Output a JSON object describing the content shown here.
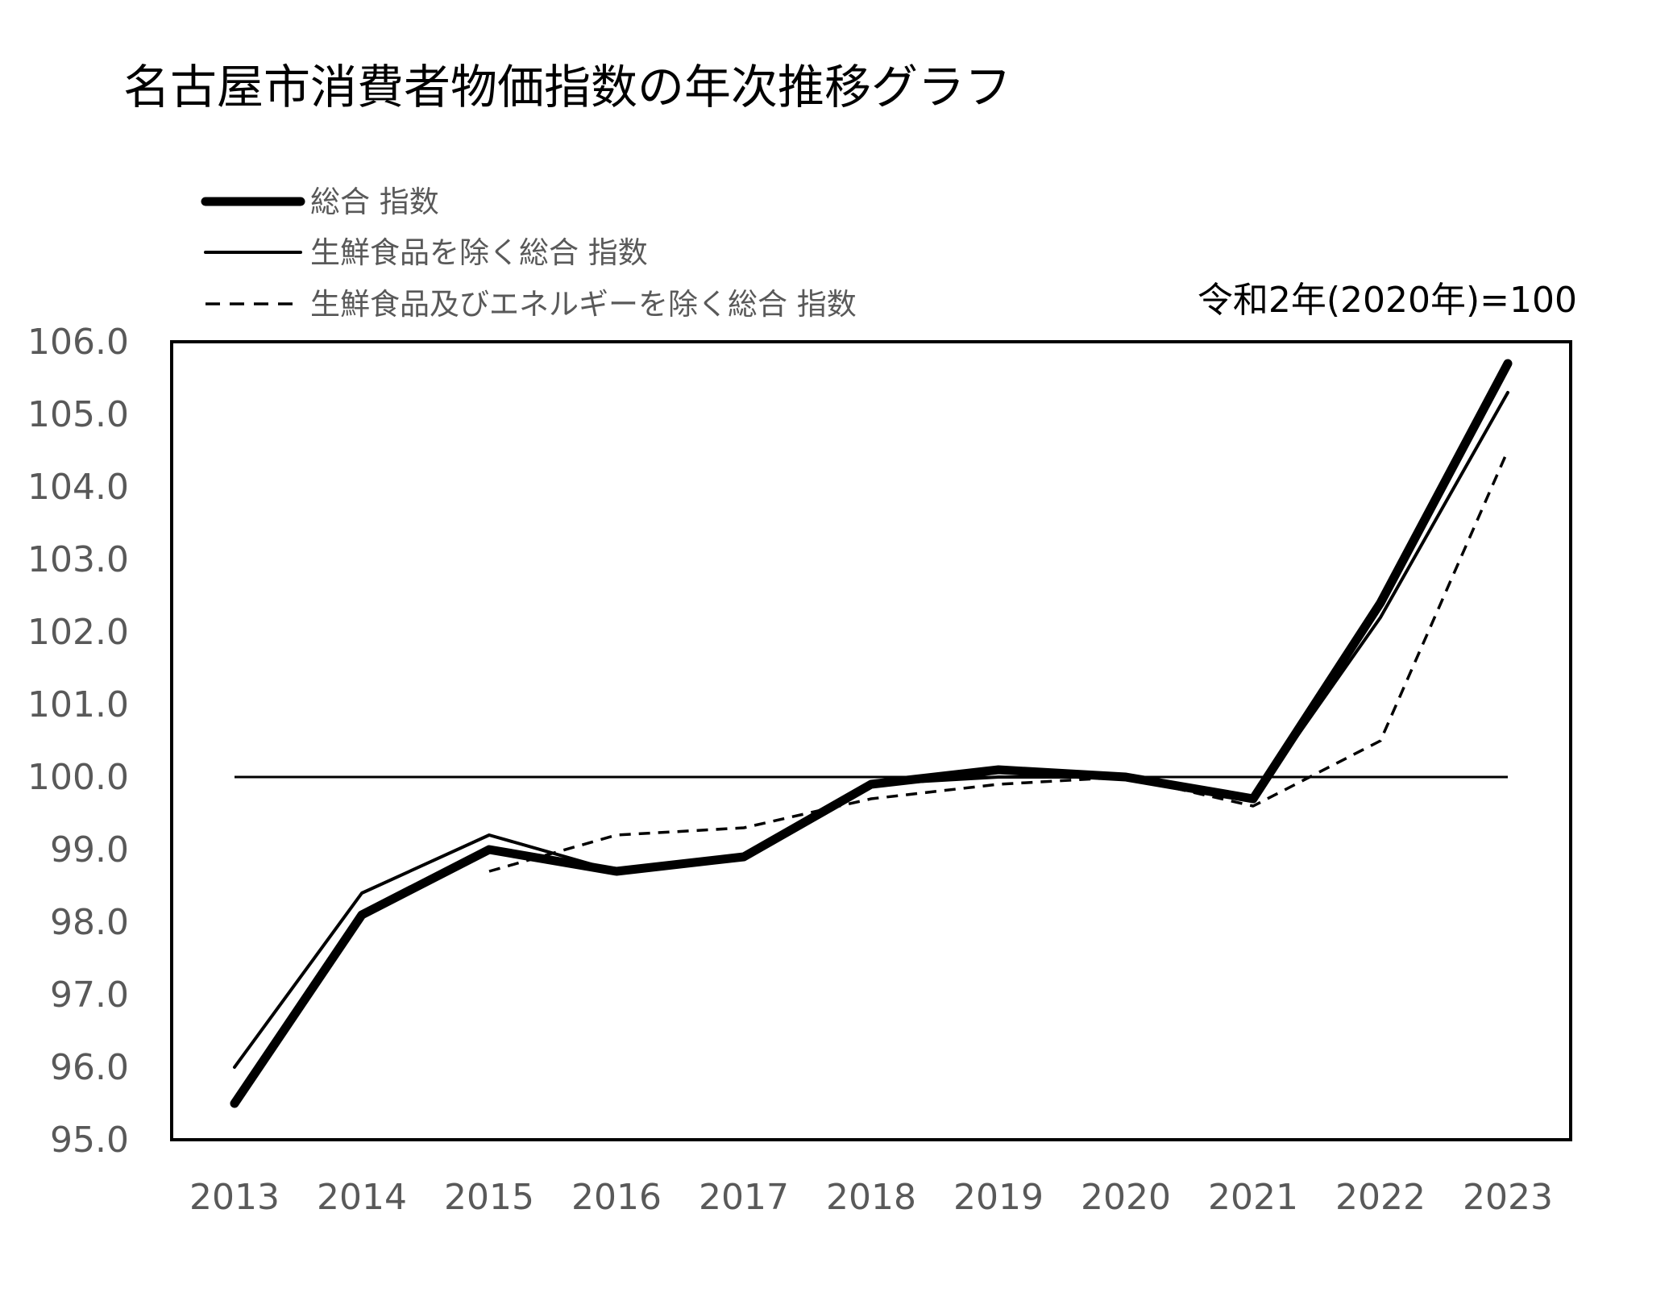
{
  "chart_data": {
    "type": "line",
    "title": "名古屋市消費者物価指数の年次推移グラフ",
    "base_note": "令和2年(2020年)=100",
    "x": [
      "2013",
      "2014",
      "2015",
      "2016",
      "2017",
      "2018",
      "2019",
      "2020",
      "2021",
      "2022",
      "2023"
    ],
    "ylim": [
      95.0,
      106.0
    ],
    "yticks": [
      "95.0",
      "96.0",
      "97.0",
      "98.0",
      "99.0",
      "100.0",
      "101.0",
      "102.0",
      "103.0",
      "104.0",
      "105.0",
      "106.0"
    ],
    "reference_line": 100.0,
    "grid": false,
    "legend_position": "top-left",
    "series": [
      {
        "name": "総合 指数",
        "style": "thick-solid",
        "color": "#000000",
        "values": [
          95.5,
          98.1,
          99.0,
          98.7,
          98.9,
          99.9,
          100.1,
          100.0,
          99.7,
          102.4,
          105.7
        ]
      },
      {
        "name": "生鮮食品を除く総合 指数",
        "style": "thin-solid",
        "color": "#000000",
        "values": [
          96.0,
          98.4,
          99.2,
          98.7,
          98.9,
          99.9,
          100.0,
          100.0,
          99.7,
          102.2,
          105.3
        ]
      },
      {
        "name": "生鮮食品及びエネルギーを除く総合 指数",
        "style": "dashed",
        "color": "#000000",
        "values": [
          null,
          null,
          98.7,
          99.2,
          99.3,
          99.7,
          99.9,
          100.0,
          99.6,
          100.5,
          104.5
        ]
      }
    ]
  }
}
